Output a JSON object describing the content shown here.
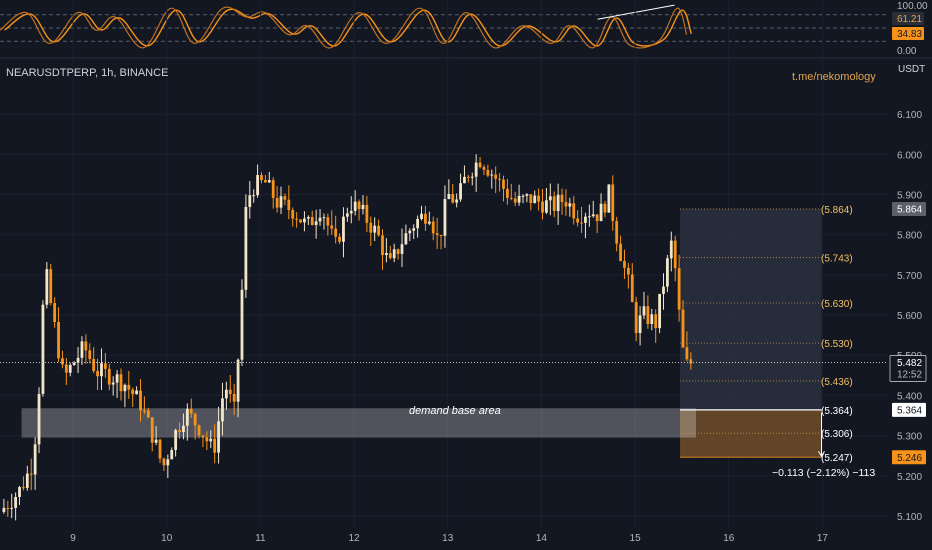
{
  "header": {
    "symbol_line": "NEARUSDTPERP, 1h, BINANCE",
    "credit": "t.me/nekomology",
    "unit": "USDT"
  },
  "oscillator": {
    "scale": [
      "100.00",
      "0.00"
    ],
    "badges": [
      {
        "value": "61.21",
        "color": "#2a2e39",
        "text_color": "#e0a44a"
      },
      {
        "value": "34.83",
        "color": "#f7931a",
        "text_color": "#131722"
      }
    ],
    "levels": [
      80,
      50,
      20
    ]
  },
  "price_badges": {
    "current": {
      "value": "5.482",
      "time": "12:52"
    },
    "target_top": "5.864",
    "entry": "5.364",
    "stop": "5.246"
  },
  "annotations": {
    "demand_label": "demand base area",
    "measure": "−0.113 (−2.12%) −113"
  },
  "chart_data": {
    "type": "candlestick",
    "ylim": [
      5.07,
      6.16
    ],
    "y_ticks": [
      "5.100",
      "5.200",
      "5.300",
      "5.400",
      "5.500",
      "5.600",
      "5.700",
      "5.800",
      "5.900",
      "6.000",
      "6.100"
    ],
    "x_ticks": [
      "9",
      "10",
      "11",
      "12",
      "13",
      "14",
      "15",
      "16",
      "17"
    ],
    "x_tick_days": [
      9,
      10,
      11,
      12,
      13,
      14,
      15,
      16,
      17
    ],
    "xlim_days": [
      8.22,
      17.7
    ],
    "current_price": 5.482,
    "fib_levels": [
      {
        "label": "(5.864)",
        "value": 5.864
      },
      {
        "label": "(5.743)",
        "value": 5.743
      },
      {
        "label": "(5.630)",
        "value": 5.63
      },
      {
        "label": "(5.530)",
        "value": 5.53
      },
      {
        "label": "(5.436)",
        "value": 5.436
      },
      {
        "label": "(5.364)",
        "value": 5.364
      },
      {
        "label": "(5.306)",
        "value": 5.306
      },
      {
        "label": "(5.247)",
        "value": 5.247
      }
    ],
    "demand_zone": {
      "from_day": 8.45,
      "to_day": 15.65,
      "low": 5.295,
      "high": 5.368
    },
    "position_box": {
      "from_day": 15.48,
      "to_day": 16.99,
      "top": 5.864,
      "entry": 5.364,
      "stop": 5.246
    },
    "anchors": [
      [
        8.22,
        5.11
      ],
      [
        8.3,
        5.13
      ],
      [
        8.42,
        5.16
      ],
      [
        8.55,
        5.22
      ],
      [
        8.62,
        5.34
      ],
      [
        8.7,
        5.72
      ],
      [
        8.78,
        5.6
      ],
      [
        8.9,
        5.44
      ],
      [
        9.0,
        5.48
      ],
      [
        9.12,
        5.52
      ],
      [
        9.25,
        5.46
      ],
      [
        9.4,
        5.45
      ],
      [
        9.55,
        5.43
      ],
      [
        9.72,
        5.38
      ],
      [
        9.85,
        5.3
      ],
      [
        9.96,
        5.22
      ],
      [
        10.08,
        5.3
      ],
      [
        10.2,
        5.36
      ],
      [
        10.35,
        5.32
      ],
      [
        10.5,
        5.26
      ],
      [
        10.62,
        5.43
      ],
      [
        10.72,
        5.36
      ],
      [
        10.78,
        5.55
      ],
      [
        10.85,
        5.88
      ],
      [
        10.92,
        5.92
      ],
      [
        11.05,
        5.93
      ],
      [
        11.18,
        5.88
      ],
      [
        11.35,
        5.86
      ],
      [
        11.5,
        5.82
      ],
      [
        11.65,
        5.87
      ],
      [
        11.8,
        5.77
      ],
      [
        11.95,
        5.88
      ],
      [
        12.1,
        5.85
      ],
      [
        12.25,
        5.8
      ],
      [
        12.38,
        5.72
      ],
      [
        12.5,
        5.78
      ],
      [
        12.65,
        5.83
      ],
      [
        12.8,
        5.86
      ],
      [
        12.9,
        5.78
      ],
      [
        13.0,
        5.9
      ],
      [
        13.1,
        5.88
      ],
      [
        13.2,
        5.95
      ],
      [
        13.35,
        5.99
      ],
      [
        13.45,
        5.96
      ],
      [
        13.58,
        5.92
      ],
      [
        13.72,
        5.88
      ],
      [
        13.88,
        5.89
      ],
      [
        14.0,
        5.88
      ],
      [
        14.12,
        5.87
      ],
      [
        14.25,
        5.89
      ],
      [
        14.38,
        5.85
      ],
      [
        14.5,
        5.86
      ],
      [
        14.62,
        5.85
      ],
      [
        14.72,
        5.9
      ],
      [
        14.8,
        5.8
      ],
      [
        14.88,
        5.72
      ],
      [
        14.95,
        5.66
      ],
      [
        15.0,
        5.57
      ],
      [
        15.1,
        5.6
      ],
      [
        15.22,
        5.58
      ],
      [
        15.32,
        5.7
      ],
      [
        15.4,
        5.79
      ],
      [
        15.5,
        5.52
      ],
      [
        15.56,
        5.47
      ],
      [
        15.6,
        5.482
      ]
    ],
    "oscillator_anchors": [
      [
        8.22,
        45
      ],
      [
        8.5,
        85
      ],
      [
        8.75,
        15
      ],
      [
        9.05,
        85
      ],
      [
        9.25,
        45
      ],
      [
        9.45,
        75
      ],
      [
        9.75,
        5
      ],
      [
        10.05,
        95
      ],
      [
        10.3,
        15
      ],
      [
        10.6,
        95
      ],
      [
        10.85,
        75
      ],
      [
        11.05,
        85
      ],
      [
        11.3,
        35
      ],
      [
        11.5,
        55
      ],
      [
        11.75,
        5
      ],
      [
        12.05,
        85
      ],
      [
        12.35,
        15
      ],
      [
        12.7,
        95
      ],
      [
        12.95,
        15
      ],
      [
        13.2,
        85
      ],
      [
        13.5,
        5
      ],
      [
        13.8,
        55
      ],
      [
        14.1,
        15
      ],
      [
        14.3,
        55
      ],
      [
        14.55,
        5
      ],
      [
        14.75,
        75
      ],
      [
        14.95,
        10
      ],
      [
        15.25,
        20
      ],
      [
        15.45,
        95
      ],
      [
        15.55,
        35
      ]
    ]
  }
}
